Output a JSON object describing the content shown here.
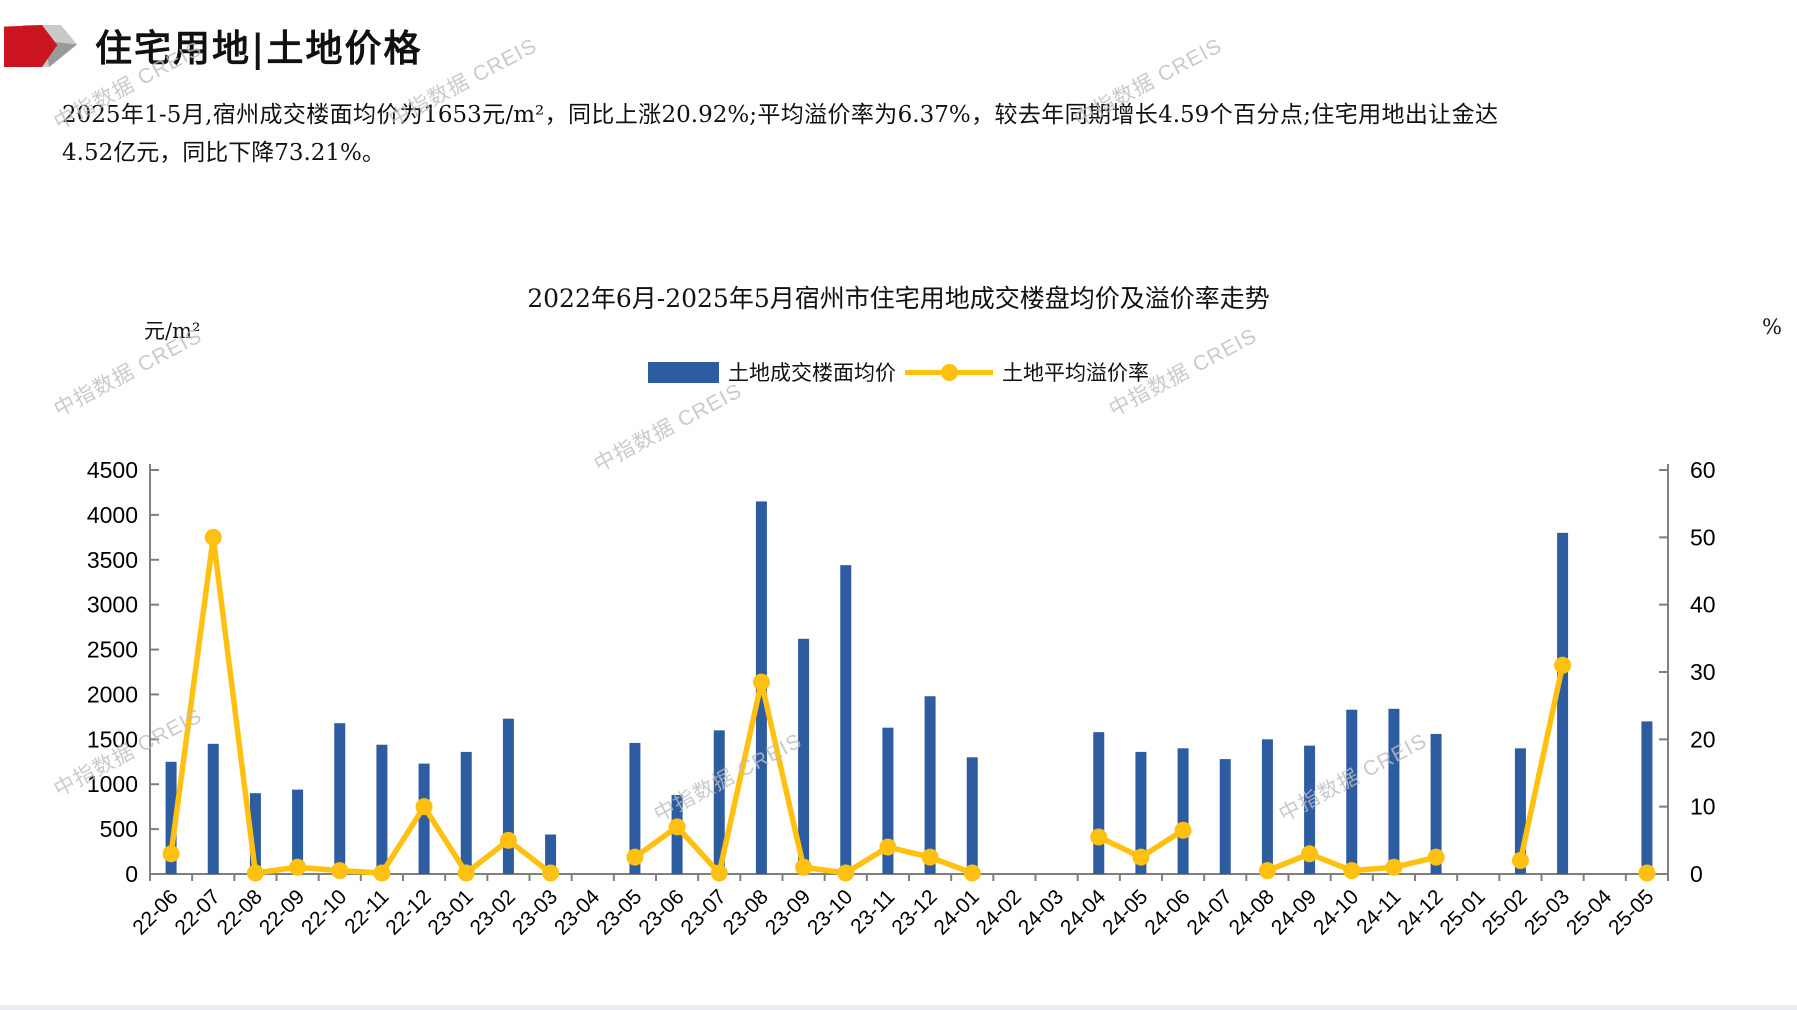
{
  "page": {
    "title": "住宅用地|土地价格",
    "summary": "2025年1-5月,宿州成交楼面均价为1653元/m²，同比上涨20.92%;平均溢价率为6.37%，较去年同期增长4.59个百分点;住宅用地出让金达4.52亿元，同比下降73.21%。",
    "watermark": "中指数据 CREIS"
  },
  "chart_data": {
    "type": "bar",
    "title": "2022年6月-2025年5月宿州市住宅用地成交楼盘均价及溢价率走势",
    "grid": false,
    "legend_position": "top-center",
    "left_axis": {
      "unit": "元/m²",
      "min": 0,
      "max": 4500,
      "step": 500
    },
    "right_axis": {
      "unit": "%",
      "min": 0,
      "max": 60,
      "step": 10
    },
    "categories": [
      "22-06",
      "22-07",
      "22-08",
      "22-09",
      "22-10",
      "22-11",
      "22-12",
      "23-01",
      "23-02",
      "23-03",
      "23-04",
      "23-05",
      "23-06",
      "23-07",
      "23-08",
      "23-09",
      "23-10",
      "23-11",
      "23-12",
      "24-01",
      "24-02",
      "24-03",
      "24-04",
      "24-05",
      "24-06",
      "24-07",
      "24-08",
      "24-09",
      "24-10",
      "24-11",
      "24-12",
      "25-01",
      "25-02",
      "25-03",
      "25-04",
      "25-05"
    ],
    "series": [
      {
        "name": "土地成交楼面均价",
        "type": "bar",
        "axis": "left",
        "color": "#2E5CA0",
        "values": [
          1250,
          1450,
          900,
          940,
          1680,
          1440,
          1230,
          1360,
          1730,
          440,
          null,
          1460,
          880,
          1600,
          4150,
          2620,
          3440,
          1630,
          1980,
          1300,
          null,
          null,
          1580,
          1360,
          1400,
          1280,
          1500,
          1430,
          1830,
          1840,
          1560,
          null,
          1400,
          3800,
          null,
          1700
        ]
      },
      {
        "name": "土地平均溢价率",
        "type": "line",
        "axis": "right",
        "color": "#FFC010",
        "values": [
          3,
          50,
          0,
          1,
          0.5,
          0,
          10,
          0,
          5,
          0,
          null,
          2.5,
          7,
          0,
          28.5,
          1,
          0,
          4,
          2.5,
          0,
          null,
          null,
          5.5,
          2.5,
          6.5,
          null,
          0.5,
          3,
          0.5,
          1,
          2.5,
          null,
          2,
          31,
          null,
          0
        ]
      }
    ]
  },
  "colors": {
    "bar": "#2E5CA0",
    "line": "#FFC010",
    "axis": "#7F7F7F",
    "logo_red": "#CC1420",
    "watermark": "#BDBDBD"
  }
}
